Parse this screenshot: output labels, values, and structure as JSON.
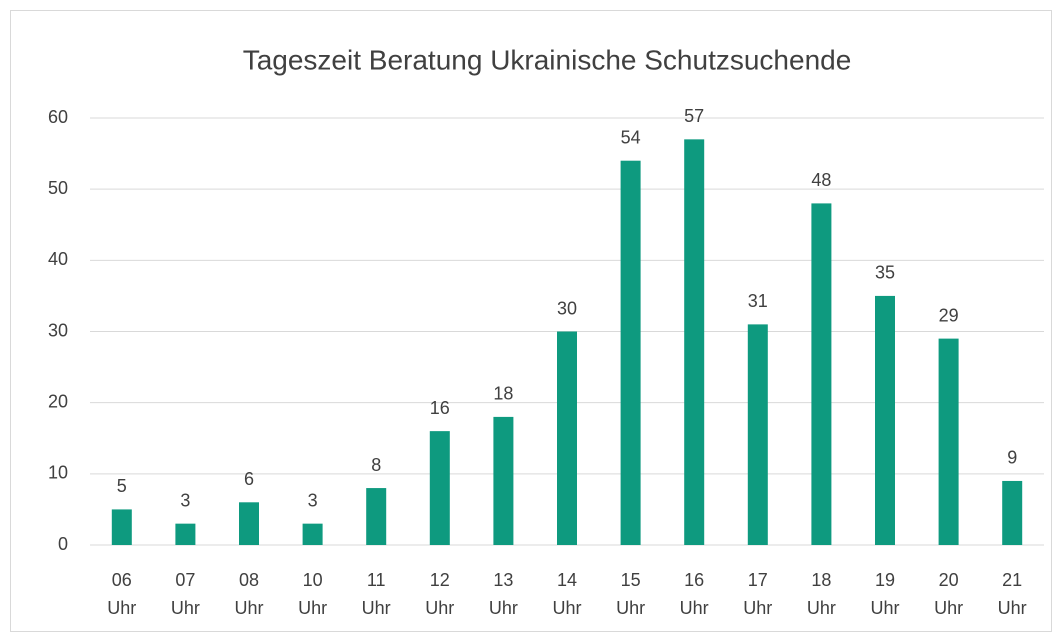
{
  "chart_data": {
    "type": "bar",
    "title": "Tageszeit Beratung Ukrainische Schutzsuchende",
    "categories": [
      "06 Uhr",
      "07 Uhr",
      "08 Uhr",
      "10 Uhr",
      "11 Uhr",
      "12 Uhr",
      "13 Uhr",
      "14 Uhr",
      "15 Uhr",
      "16 Uhr",
      "17 Uhr",
      "18 Uhr",
      "19 Uhr",
      "20 Uhr",
      "21 Uhr"
    ],
    "values": [
      5,
      3,
      6,
      3,
      8,
      16,
      18,
      30,
      54,
      57,
      31,
      48,
      35,
      29,
      9
    ],
    "color": "#0e9a7f",
    "ylim": [
      0,
      60
    ],
    "yticks": [
      0,
      10,
      20,
      30,
      40,
      50,
      60
    ],
    "grid": true
  }
}
